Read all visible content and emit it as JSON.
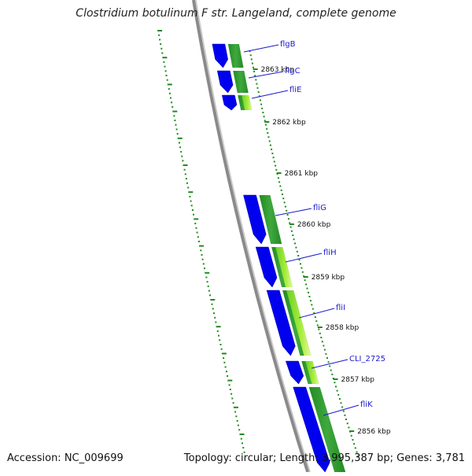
{
  "title": "Clostridium botulinum F str. Langeland, complete genome",
  "accession": "Accession: NC_009699",
  "stats": "Topology: circular; Length: 3,995,387 bp; Genes: 3,781",
  "colors": {
    "cds": "#0000ee",
    "feature_dark": "#228b22",
    "feature_light": "#a8ee3c",
    "label": "#1a1acc",
    "backbone": "#808080",
    "dots": "#1f8a1f",
    "tick": "#1f8a1f"
  },
  "ticks": [
    {
      "label": "2863 kbp"
    },
    {
      "label": "2862 kbp"
    },
    {
      "label": "2861 kbp"
    },
    {
      "label": "2860 kbp"
    },
    {
      "label": "2859 kbp"
    },
    {
      "label": "2858 kbp"
    },
    {
      "label": "2857 kbp"
    },
    {
      "label": "2856 kbp"
    }
  ],
  "genes": [
    {
      "label": "flgB"
    },
    {
      "label": "flgC"
    },
    {
      "label": "fliE"
    },
    {
      "label": "fliG"
    },
    {
      "label": "fliH"
    },
    {
      "label": "fliI"
    },
    {
      "label": "CLI_2725"
    },
    {
      "label": "fliK"
    }
  ]
}
